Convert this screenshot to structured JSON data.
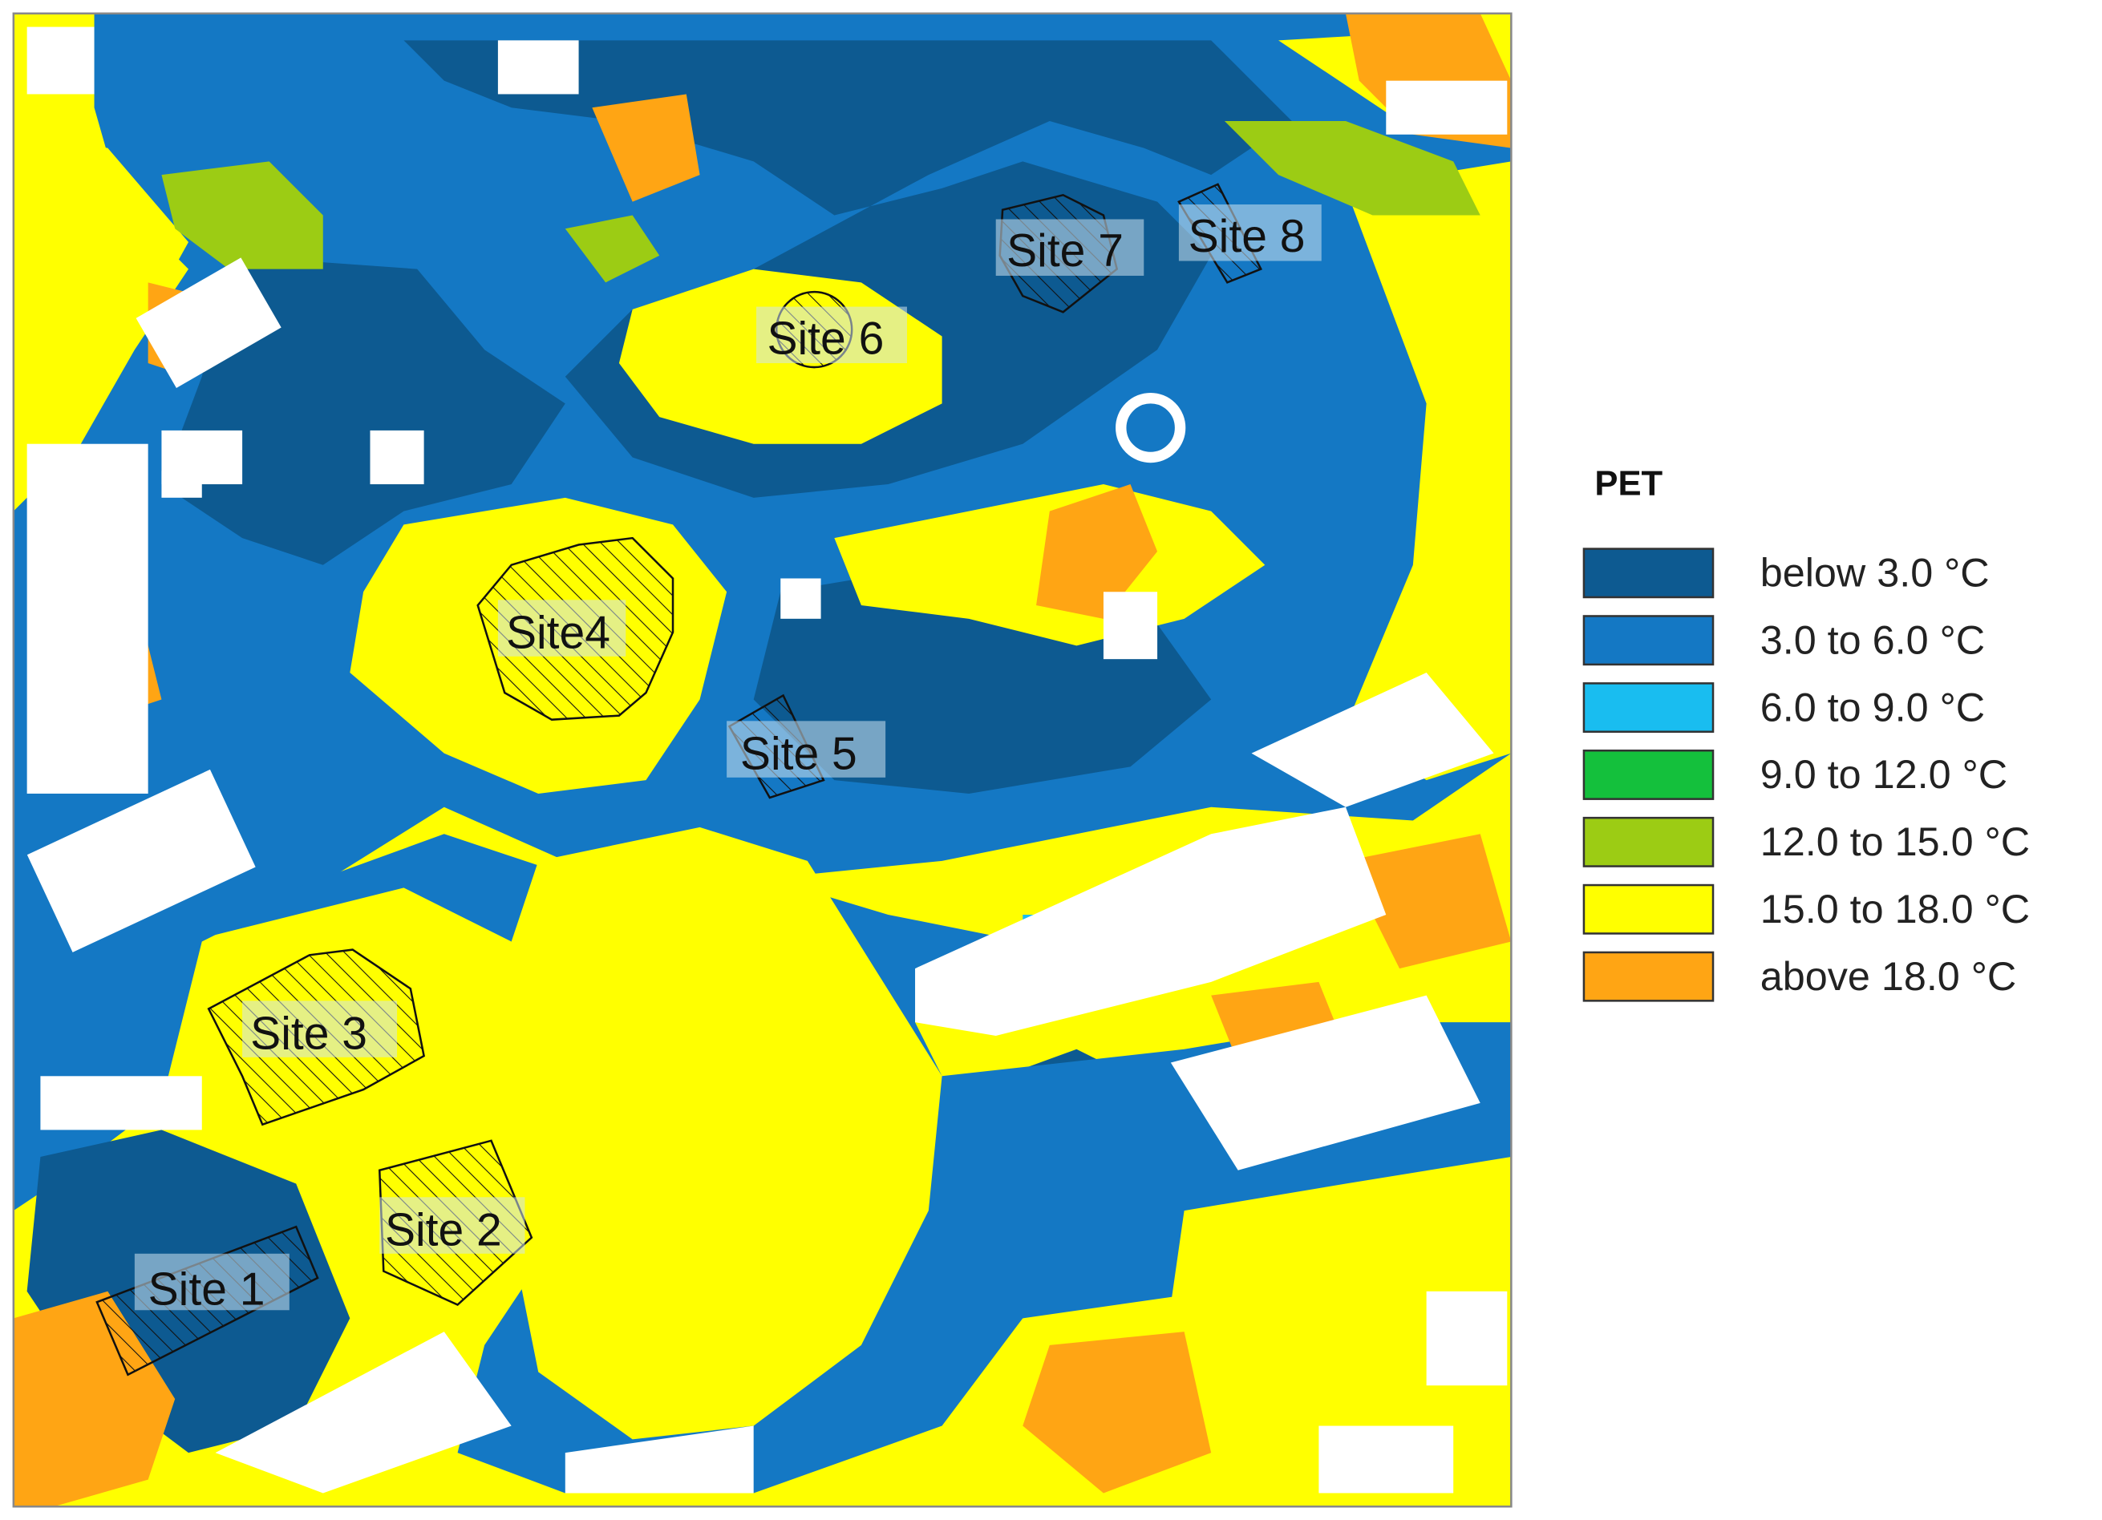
{
  "map": {
    "sites": [
      "Site 1",
      "Site 2",
      "Site 3",
      "Site4",
      "Site 5",
      "Site 6",
      "Site 7",
      "Site 8"
    ],
    "legend": {
      "title": "PET",
      "items": [
        {
          "label": "below 3.0 °C",
          "color": "#0d5a91"
        },
        {
          "label": "3.0 to 6.0 °C",
          "color": "#1478c4"
        },
        {
          "label": "6.0 to 9.0 °C",
          "color": "#19bdf0"
        },
        {
          "label": "9.0 to 12.0 °C",
          "color": "#14c03c"
        },
        {
          "label": "12.0 to 15.0 °C",
          "color": "#9ccc14"
        },
        {
          "label": "15.0 to 18.0 °C",
          "color": "#ffff00"
        },
        {
          "label": "above 18.0 °C",
          "color": "#ffa514"
        }
      ]
    }
  }
}
